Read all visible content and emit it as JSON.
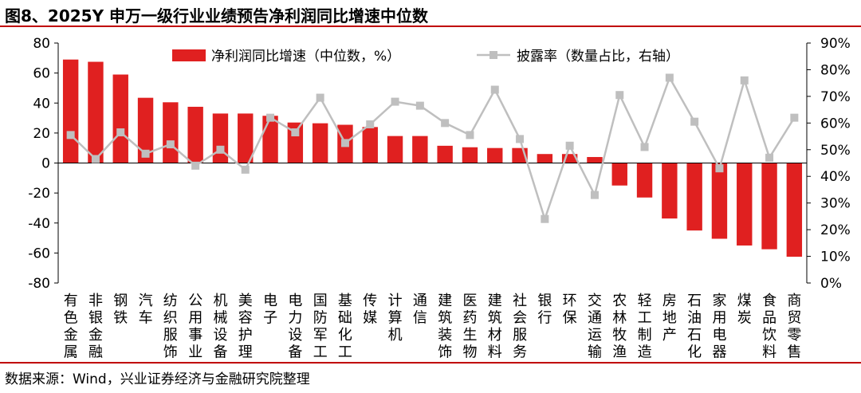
{
  "title": "图8、2025Y 申万一级行业业绩预告净利润同比增速中位数",
  "source": "数据来源：Wind，兴业证券经济与金融研究院整理",
  "chart_data": {
    "type": "bar",
    "categories": [
      "有色金属",
      "非银金融",
      "钢铁",
      "汽车",
      "纺织服饰",
      "公用事业",
      "机械设备",
      "美容护理",
      "电子",
      "电力设备",
      "国防军工",
      "基础化工",
      "传媒",
      "计算机",
      "通信",
      "建筑装饰",
      "医药生物",
      "建筑材料",
      "社会服务",
      "银行",
      "环保",
      "交通运输",
      "农林牧渔",
      "轻工制造",
      "房地产",
      "石油石化",
      "家用电器",
      "煤炭",
      "食品饮料",
      "商贸零售"
    ],
    "series": [
      {
        "name": "净利润同比增速（中位数，%）",
        "type": "bar",
        "axis": "left",
        "color": "#E02020",
        "values": [
          69,
          67.5,
          59,
          43.5,
          40.5,
          37.5,
          33,
          33,
          31.5,
          27,
          26.5,
          25.5,
          24,
          18,
          18,
          11.5,
          10.5,
          10,
          10,
          6,
          6,
          4,
          -15,
          -23,
          -37,
          -45,
          -50.5,
          -55,
          -57.5,
          -62.5
        ]
      },
      {
        "name": "披露率（数量占比，右轴）",
        "type": "line",
        "axis": "right",
        "color": "#BFBFBF",
        "values": [
          55.5,
          46.5,
          56.5,
          48.5,
          52,
          44,
          50,
          42.5,
          62,
          56.5,
          69.5,
          52.5,
          59.5,
          68,
          66.5,
          60,
          55.5,
          72.5,
          54,
          24,
          51.5,
          33,
          70.5,
          51,
          77,
          60.5,
          43,
          76,
          47,
          62
        ]
      }
    ],
    "y_left": {
      "min": -80,
      "max": 80,
      "ticks": [
        80,
        60,
        40,
        20,
        0,
        -20,
        -40,
        -60,
        -80
      ]
    },
    "y_right": {
      "min": 0,
      "max": 90,
      "ticks": [
        "90%",
        "80%",
        "70%",
        "60%",
        "50%",
        "40%",
        "30%",
        "20%",
        "10%",
        "0%"
      ]
    },
    "legend_position": "top"
  }
}
